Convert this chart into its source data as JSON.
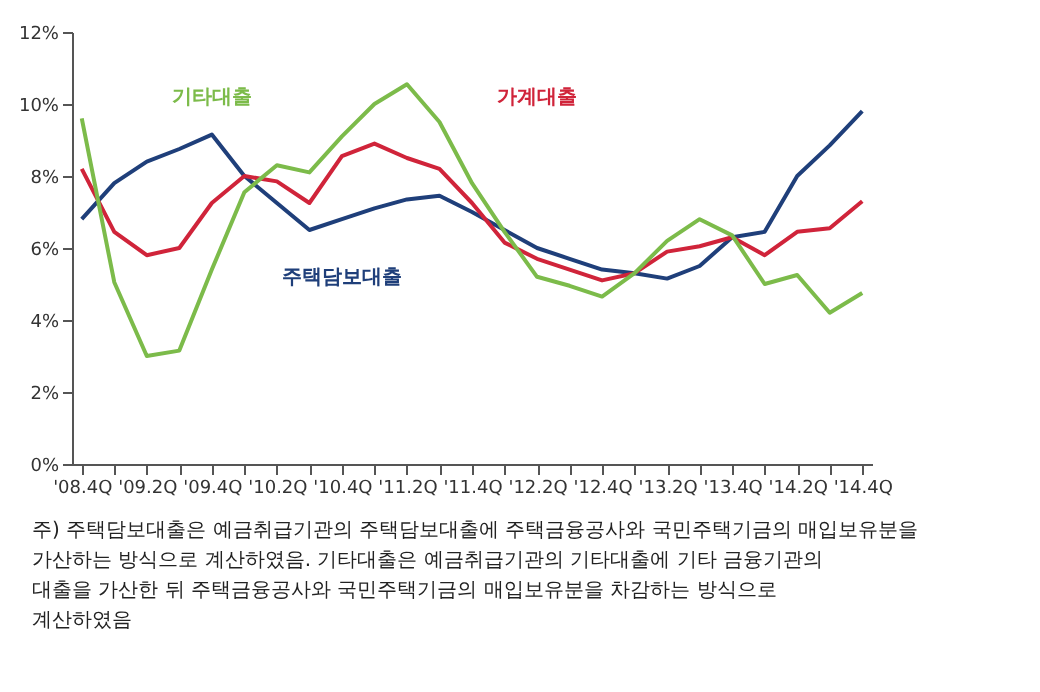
{
  "chart_data": {
    "type": "line",
    "categories": [
      "'08.4Q",
      null,
      "'09.2Q",
      null,
      "'09.4Q",
      null,
      "'10.2Q",
      null,
      "'10.4Q",
      null,
      "'11.2Q",
      null,
      "'11.4Q",
      null,
      "'12.2Q",
      null,
      "'12.4Q",
      null,
      "'13.2Q",
      null,
      "'13.4Q",
      null,
      "'14.2Q",
      null,
      "'14.4Q"
    ],
    "series": [
      {
        "name": "주택담보대출",
        "color": "#1f3f7a",
        "values": [
          6.8,
          7.8,
          8.4,
          8.75,
          9.15,
          8.0,
          7.25,
          6.5,
          6.8,
          7.1,
          7.35,
          7.45,
          7.0,
          6.5,
          6.0,
          5.7,
          5.4,
          5.3,
          5.15,
          5.5,
          6.3,
          6.45,
          8.0,
          8.85,
          9.8
        ]
      },
      {
        "name": "가계대출",
        "color": "#d0243a",
        "values": [
          8.2,
          6.45,
          5.8,
          6.0,
          7.25,
          8.0,
          7.85,
          7.25,
          8.55,
          8.9,
          8.5,
          8.2,
          7.25,
          6.15,
          5.7,
          5.4,
          5.1,
          5.3,
          5.9,
          6.05,
          6.3,
          5.8,
          6.45,
          6.55,
          7.3
        ]
      },
      {
        "name": "기타대출",
        "color": "#7cbb4a",
        "values": [
          9.6,
          5.05,
          3.0,
          3.15,
          5.4,
          7.55,
          8.3,
          8.1,
          9.1,
          10.0,
          10.55,
          9.5,
          7.8,
          6.45,
          5.2,
          4.95,
          4.65,
          5.3,
          6.2,
          6.8,
          6.35,
          5.0,
          5.25,
          4.2,
          4.75
        ]
      }
    ],
    "ylim": [
      0,
      12
    ],
    "yticks": [
      {
        "value": 0,
        "label": "0%"
      },
      {
        "value": 2,
        "label": "2%"
      },
      {
        "value": 4,
        "label": "4%"
      },
      {
        "value": 6,
        "label": "6%"
      },
      {
        "value": 8,
        "label": "8%"
      },
      {
        "value": 10,
        "label": "10%"
      },
      {
        "value": 12,
        "label": "12%"
      }
    ],
    "grid": false,
    "legend": false,
    "marker": "none",
    "line_style": "solid",
    "annotations": [
      "주) 주택담보대출은 예금취급기관의 주택담보대출에 주택금융공사와 국민주택기금의 매입보유분을 가산하는 방식으로 계산하였음. 기타대출은 예금취급기관의 기타대출에 기타 금융기관의 대출을 가산한 뒤 주택금융공사와 국민주택기금의 매입보유분을 차감하는 방식으로 계산하였음"
    ]
  }
}
